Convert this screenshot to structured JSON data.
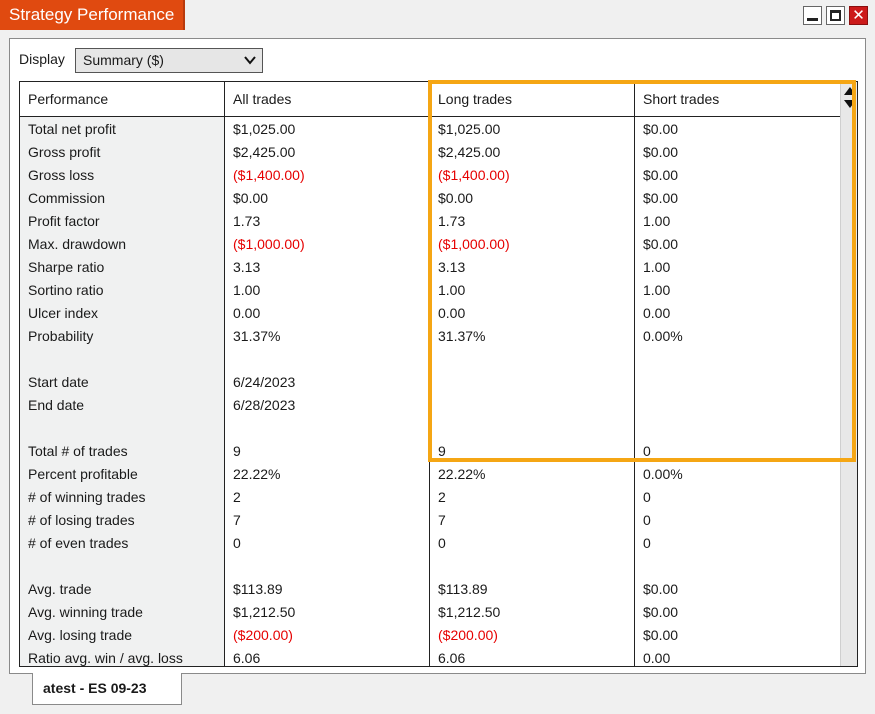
{
  "window": {
    "title": "Strategy Performance"
  },
  "toolbar": {
    "display_label": "Display",
    "display_value": "Summary ($)"
  },
  "headers": [
    "Performance",
    "All trades",
    "Long trades",
    "Short trades"
  ],
  "rows": [
    {
      "label": "Total net profit",
      "all": "$1,025.00",
      "long": "$1,025.00",
      "short": "$0.00"
    },
    {
      "label": "Gross profit",
      "all": "$2,425.00",
      "long": "$2,425.00",
      "short": "$0.00"
    },
    {
      "label": "Gross loss",
      "all": "($1,400.00)",
      "long": "($1,400.00)",
      "short": "$0.00"
    },
    {
      "label": "Commission",
      "all": "$0.00",
      "long": "$0.00",
      "short": "$0.00"
    },
    {
      "label": "Profit factor",
      "all": "1.73",
      "long": "1.73",
      "short": "1.00"
    },
    {
      "label": "Max. drawdown",
      "all": "($1,000.00)",
      "long": "($1,000.00)",
      "short": "$0.00"
    },
    {
      "label": "Sharpe ratio",
      "all": "3.13",
      "long": "3.13",
      "short": "1.00"
    },
    {
      "label": "Sortino ratio",
      "all": "1.00",
      "long": "1.00",
      "short": "1.00"
    },
    {
      "label": "Ulcer index",
      "all": "0.00",
      "long": "0.00",
      "short": "0.00"
    },
    {
      "label": "Probability",
      "all": "31.37%",
      "long": "31.37%",
      "short": "0.00%"
    },
    {
      "label": "",
      "all": "",
      "long": "",
      "short": ""
    },
    {
      "label": "Start date",
      "all": "6/24/2023",
      "long": "",
      "short": ""
    },
    {
      "label": "End date",
      "all": "6/28/2023",
      "long": "",
      "short": ""
    },
    {
      "label": "",
      "all": "",
      "long": "",
      "short": ""
    },
    {
      "label": "Total # of trades",
      "all": "9",
      "long": "9",
      "short": "0"
    },
    {
      "label": "Percent profitable",
      "all": "22.22%",
      "long": "22.22%",
      "short": "0.00%"
    },
    {
      "label": "# of winning trades",
      "all": "2",
      "long": "2",
      "short": "0"
    },
    {
      "label": "# of losing trades",
      "all": "7",
      "long": "7",
      "short": "0"
    },
    {
      "label": "# of even trades",
      "all": "0",
      "long": "0",
      "short": "0"
    },
    {
      "label": "",
      "all": "",
      "long": "",
      "short": ""
    },
    {
      "label": "Avg. trade",
      "all": "$113.89",
      "long": "$113.89",
      "short": "$0.00"
    },
    {
      "label": "Avg. winning trade",
      "all": "$1,212.50",
      "long": "$1,212.50",
      "short": "$0.00"
    },
    {
      "label": "Avg. losing trade",
      "all": "($200.00)",
      "long": "($200.00)",
      "short": "$0.00"
    },
    {
      "label": "Ratio avg. win / avg. loss",
      "all": "6.06",
      "long": "6.06",
      "short": "0.00"
    }
  ],
  "tabs": [
    {
      "label": "atest - ES 09-23"
    }
  ],
  "colors": {
    "title_bar": "#e04a10",
    "negative": "#e60000",
    "highlight": "#f5a614",
    "close_button": "#cc1a1a"
  }
}
